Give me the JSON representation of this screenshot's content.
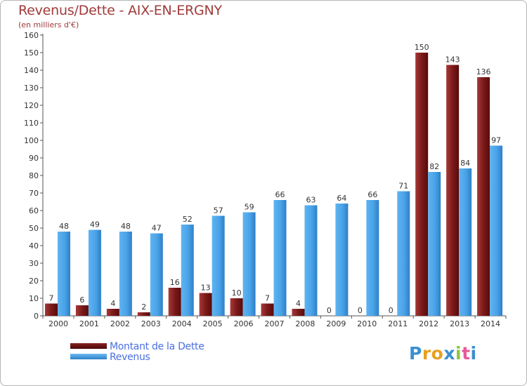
{
  "header": {
    "title": "Revenus/Dette - AIX-EN-ERGNY",
    "subtitle": "(en milliers d'€)"
  },
  "legend": {
    "items": [
      {
        "label": "Montant de la Dette",
        "color": "#6b0f0f"
      },
      {
        "label": "Revenus",
        "color": "#4aa3e8"
      }
    ]
  },
  "logo": {
    "letters": [
      "P",
      "r",
      "o",
      "x",
      "i",
      "t",
      "i"
    ],
    "colors": [
      "#3a8fd0",
      "#e8a020",
      "#e8a020",
      "#3a8fd0",
      "#8cc63f",
      "#e85a9a",
      "#3a8fd0"
    ]
  },
  "chart_data": {
    "type": "bar",
    "title": "Revenus/Dette - AIX-EN-ERGNY",
    "subtitle": "(en milliers d'€)",
    "categories": [
      "2000",
      "2001",
      "2002",
      "2003",
      "2004",
      "2005",
      "2006",
      "2007",
      "2008",
      "2009",
      "2010",
      "2011",
      "2012",
      "2013",
      "2014"
    ],
    "series": [
      {
        "name": "Montant de la Dette",
        "color": "#7a1a1a",
        "values": [
          7,
          6,
          4,
          2,
          16,
          13,
          10,
          7,
          4,
          0,
          0,
          0,
          150,
          143,
          136
        ]
      },
      {
        "name": "Revenus",
        "color": "#4aa3e8",
        "values": [
          48,
          49,
          48,
          47,
          52,
          57,
          59,
          66,
          63,
          64,
          66,
          71,
          82,
          84,
          97
        ]
      }
    ],
    "ylim": [
      0,
      160
    ],
    "ytick_step": 10,
    "grid": false,
    "legend_position": "bottom-left"
  }
}
